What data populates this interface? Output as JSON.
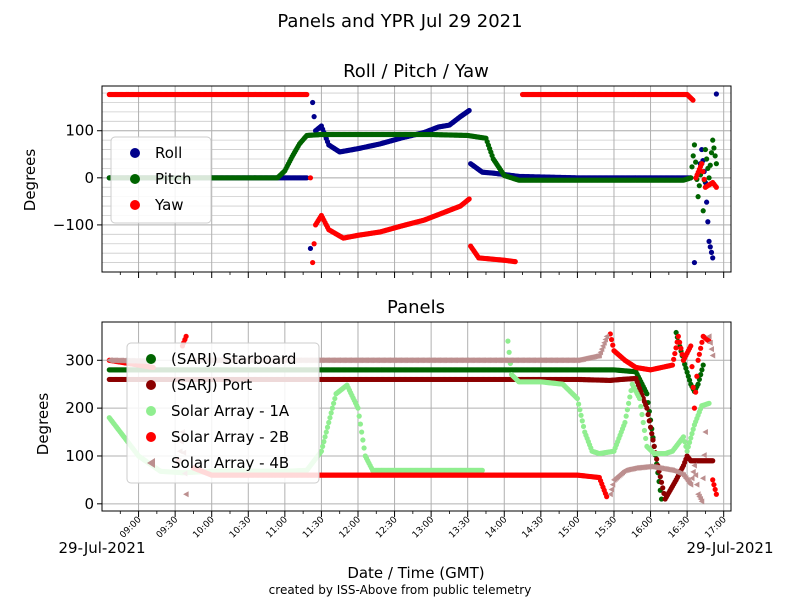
{
  "figure": {
    "suptitle": "Panels and YPR Jul 29 2021",
    "xlabel": "Date / Time (GMT)",
    "credit": "created by ISS-Above from public telemetry",
    "date_left": "29-Jul-2021",
    "date_right": "29-Jul-2021"
  },
  "time_ticks": [
    "09:00",
    "09:30",
    "10:00",
    "10:30",
    "11:00",
    "11:30",
    "12:00",
    "12:30",
    "13:00",
    "13:30",
    "14:00",
    "14:30",
    "15:00",
    "15:30",
    "16:00",
    "16:30",
    "17:00"
  ],
  "colors": {
    "Roll": "#00008b",
    "Pitch": "#006400",
    "Yaw": "#ff0000",
    "(SARJ) Starboard": "#006400",
    "(SARJ) Port": "#8b0000",
    "Solar Array - 1A": "#90ee90",
    "Solar Array - 2B": "#ff0000",
    "Solar Array - 4B": "#bc8f8f"
  },
  "chart_data": [
    {
      "type": "scatter",
      "title": "Roll / Pitch / Yaw",
      "xlabel": "",
      "ylabel": "Degrees",
      "x_units": "hours GMT, 29-Jul-2021",
      "xlim": [
        8.5,
        17.1
      ],
      "ylim": [
        -200,
        195
      ],
      "yticks": [
        -100,
        0,
        100
      ],
      "grid": true,
      "legend": "left",
      "series": [
        {
          "name": "Roll",
          "marker": "circle",
          "points": [
            [
              8.6,
              0
            ],
            [
              10.0,
              0
            ],
            [
              11.0,
              0
            ],
            [
              11.3,
              0
            ],
            [
              11.35,
              -150
            ],
            [
              11.38,
              160
            ],
            [
              11.42,
              100
            ],
            [
              11.5,
              110
            ],
            [
              11.6,
              70
            ],
            [
              11.75,
              55
            ],
            [
              12.0,
              62
            ],
            [
              12.3,
              72
            ],
            [
              12.6,
              85
            ],
            [
              12.9,
              96
            ],
            [
              13.1,
              108
            ],
            [
              13.25,
              112
            ],
            [
              13.4,
              130
            ],
            [
              13.52,
              143
            ],
            [
              13.54,
              30
            ],
            [
              13.7,
              12
            ],
            [
              13.85,
              10
            ],
            [
              14.2,
              3
            ],
            [
              15.0,
              0
            ],
            [
              16.0,
              0
            ],
            [
              16.4,
              0
            ],
            [
              16.55,
              0
            ],
            [
              16.6,
              -180
            ],
            [
              16.68,
              30
            ],
            [
              16.7,
              60
            ],
            [
              16.75,
              -10
            ],
            [
              16.8,
              -135
            ],
            [
              16.85,
              -170
            ],
            [
              16.9,
              178
            ]
          ]
        },
        {
          "name": "Pitch",
          "marker": "circle",
          "points": [
            [
              8.6,
              0
            ],
            [
              10.0,
              0
            ],
            [
              10.9,
              0
            ],
            [
              11.0,
              15
            ],
            [
              11.1,
              45
            ],
            [
              11.2,
              72
            ],
            [
              11.3,
              90
            ],
            [
              11.5,
              92
            ],
            [
              12.0,
              92
            ],
            [
              12.5,
              92
            ],
            [
              13.0,
              92
            ],
            [
              13.5,
              90
            ],
            [
              13.75,
              84
            ],
            [
              13.85,
              40
            ],
            [
              14.0,
              5
            ],
            [
              14.2,
              -5
            ],
            [
              15.0,
              -5
            ],
            [
              16.0,
              -5
            ],
            [
              16.45,
              -5
            ],
            [
              16.55,
              0
            ],
            [
              16.6,
              70
            ],
            [
              16.65,
              -40
            ],
            [
              16.7,
              30
            ],
            [
              16.72,
              -70
            ],
            [
              16.75,
              60
            ],
            [
              16.8,
              0
            ],
            [
              16.85,
              80
            ],
            [
              16.9,
              30
            ]
          ]
        },
        {
          "name": "Yaw",
          "marker": "circle",
          "points": [
            [
              8.6,
              177
            ],
            [
              9.5,
              177
            ],
            [
              10.5,
              177
            ],
            [
              11.3,
              177
            ],
            [
              11.35,
              0
            ],
            [
              11.38,
              -180
            ],
            [
              11.42,
              -100
            ],
            [
              11.5,
              -80
            ],
            [
              11.6,
              -110
            ],
            [
              11.8,
              -128
            ],
            [
              12.0,
              -122
            ],
            [
              12.3,
              -115
            ],
            [
              12.6,
              -102
            ],
            [
              12.9,
              -90
            ],
            [
              13.2,
              -72
            ],
            [
              13.4,
              -60
            ],
            [
              13.52,
              -45
            ],
            [
              13.54,
              -145
            ],
            [
              13.65,
              -170
            ],
            [
              14.0,
              -175
            ],
            [
              14.15,
              -178
            ],
            [
              14.25,
              177
            ],
            [
              15.0,
              177
            ],
            [
              15.5,
              177
            ],
            [
              16.0,
              177
            ],
            [
              16.5,
              177
            ],
            [
              16.58,
              165
            ],
            [
              16.62,
              0
            ],
            [
              16.7,
              30
            ],
            [
              16.75,
              -20
            ],
            [
              16.85,
              -10
            ],
            [
              16.9,
              -20
            ]
          ]
        }
      ]
    },
    {
      "type": "scatter",
      "title": "Panels",
      "xlabel": "Date / Time (GMT)",
      "ylabel": "Degrees",
      "x_units": "hours GMT, 29-Jul-2021",
      "xlim": [
        8.5,
        17.1
      ],
      "ylim": [
        -15,
        380
      ],
      "yticks": [
        0,
        100,
        200,
        300
      ],
      "grid": true,
      "legend": "left",
      "series": [
        {
          "name": "(SARJ) Starboard",
          "marker": "circle",
          "points": [
            [
              8.6,
              280
            ],
            [
              9.8,
              280
            ],
            [
              11.0,
              280
            ],
            [
              12.5,
              280
            ],
            [
              13.5,
              280
            ],
            [
              13.85,
              280
            ],
            [
              14.5,
              280
            ],
            [
              15.5,
              280
            ],
            [
              15.8,
              276
            ],
            [
              15.95,
              230
            ],
            [
              16.05,
              120
            ],
            [
              16.15,
              10
            ],
            [
              16.35,
              358
            ],
            [
              16.45,
              300
            ],
            [
              16.55,
              250
            ],
            [
              16.6,
              235
            ],
            [
              16.65,
              250
            ],
            [
              16.72,
              290
            ]
          ]
        },
        {
          "name": "(SARJ) Port",
          "marker": "circle",
          "points": [
            [
              8.6,
              260
            ],
            [
              9.8,
              260
            ],
            [
              11.0,
              260
            ],
            [
              12.5,
              260
            ],
            [
              13.5,
              260
            ],
            [
              13.85,
              260
            ],
            [
              14.5,
              260
            ],
            [
              15.0,
              260
            ],
            [
              15.45,
              258
            ],
            [
              15.6,
              260
            ],
            [
              15.8,
              262
            ],
            [
              15.95,
              200
            ],
            [
              16.1,
              80
            ],
            [
              16.2,
              10
            ],
            [
              16.35,
              50
            ],
            [
              16.45,
              80
            ],
            [
              16.5,
              100
            ],
            [
              16.55,
              90
            ],
            [
              16.6,
              90
            ],
            [
              16.85,
              90
            ]
          ]
        },
        {
          "name": "Solar Array - 1A",
          "marker": "circle",
          "points": [
            [
              8.6,
              180
            ],
            [
              9.0,
              100
            ],
            [
              9.3,
              68
            ],
            [
              9.6,
              65
            ],
            [
              10.0,
              68
            ],
            [
              10.5,
              68
            ],
            [
              11.0,
              68
            ],
            [
              11.3,
              70
            ],
            [
              11.5,
              110
            ],
            [
              11.7,
              230
            ],
            [
              11.85,
              248
            ],
            [
              12.0,
              200
            ],
            [
              12.1,
              100
            ],
            [
              12.2,
              70
            ],
            [
              12.5,
              70
            ],
            [
              13.0,
              70
            ],
            [
              13.5,
              70
            ],
            [
              13.7,
              70
            ],
            [
              14.05,
              340
            ],
            [
              14.1,
              270
            ],
            [
              14.2,
              255
            ],
            [
              14.5,
              255
            ],
            [
              14.8,
              250
            ],
            [
              15.0,
              220
            ],
            [
              15.1,
              150
            ],
            [
              15.2,
              110
            ],
            [
              15.3,
              105
            ],
            [
              15.5,
              110
            ],
            [
              15.65,
              170
            ],
            [
              15.75,
              250
            ],
            [
              15.85,
              220
            ],
            [
              15.95,
              120
            ],
            [
              16.05,
              105
            ],
            [
              16.2,
              105
            ],
            [
              16.3,
              110
            ],
            [
              16.45,
              140
            ],
            [
              16.5,
              110
            ],
            [
              16.6,
              165
            ],
            [
              16.7,
              205
            ],
            [
              16.8,
              210
            ]
          ]
        },
        {
          "name": "Solar Array - 2B",
          "marker": "circle",
          "points": [
            [
              8.6,
              300
            ],
            [
              9.2,
              285
            ],
            [
              9.55,
              90
            ],
            [
              9.6,
              330
            ],
            [
              9.65,
              350
            ],
            [
              9.75,
              75
            ],
            [
              10.0,
              60
            ],
            [
              10.5,
              60
            ],
            [
              11.0,
              60
            ],
            [
              11.5,
              60
            ],
            [
              12.0,
              60
            ],
            [
              12.5,
              60
            ],
            [
              13.0,
              60
            ],
            [
              13.5,
              60
            ],
            [
              13.85,
              60
            ],
            [
              14.0,
              60
            ],
            [
              14.5,
              60
            ],
            [
              15.0,
              60
            ],
            [
              15.3,
              55
            ],
            [
              15.4,
              15
            ],
            [
              15.45,
              355
            ],
            [
              15.5,
              320
            ],
            [
              15.65,
              300
            ],
            [
              15.8,
              285
            ],
            [
              16.0,
              280
            ],
            [
              16.3,
              290
            ],
            [
              16.38,
              350
            ],
            [
              16.45,
              300
            ],
            [
              16.55,
              330
            ],
            [
              16.6,
              200
            ],
            [
              16.65,
              300
            ],
            [
              16.72,
              350
            ],
            [
              16.8,
              340
            ],
            [
              16.85,
              50
            ],
            [
              16.9,
              20
            ]
          ]
        },
        {
          "name": "Solar Array - 4B",
          "marker": "triangle-left",
          "points": [
            [
              8.6,
              300
            ],
            [
              9.2,
              298
            ],
            [
              9.55,
              90
            ],
            [
              9.6,
              150
            ],
            [
              9.65,
              20
            ],
            [
              9.75,
              300
            ],
            [
              10.0,
              300
            ],
            [
              10.5,
              300
            ],
            [
              11.0,
              300
            ],
            [
              11.5,
              300
            ],
            [
              12.0,
              300
            ],
            [
              12.5,
              300
            ],
            [
              13.0,
              300
            ],
            [
              13.5,
              300
            ],
            [
              13.85,
              300
            ],
            [
              14.2,
              300
            ],
            [
              14.5,
              300
            ],
            [
              15.0,
              300
            ],
            [
              15.3,
              310
            ],
            [
              15.4,
              350
            ],
            [
              15.45,
              20
            ],
            [
              15.5,
              50
            ],
            [
              15.65,
              70
            ],
            [
              15.8,
              75
            ],
            [
              16.0,
              78
            ],
            [
              16.3,
              70
            ],
            [
              16.45,
              60
            ],
            [
              16.5,
              50
            ],
            [
              16.55,
              40
            ],
            [
              16.6,
              80
            ],
            [
              16.65,
              20
            ],
            [
              16.7,
              5
            ],
            [
              16.75,
              150
            ],
            [
              16.8,
              350
            ],
            [
              16.85,
              310
            ]
          ]
        }
      ]
    }
  ]
}
